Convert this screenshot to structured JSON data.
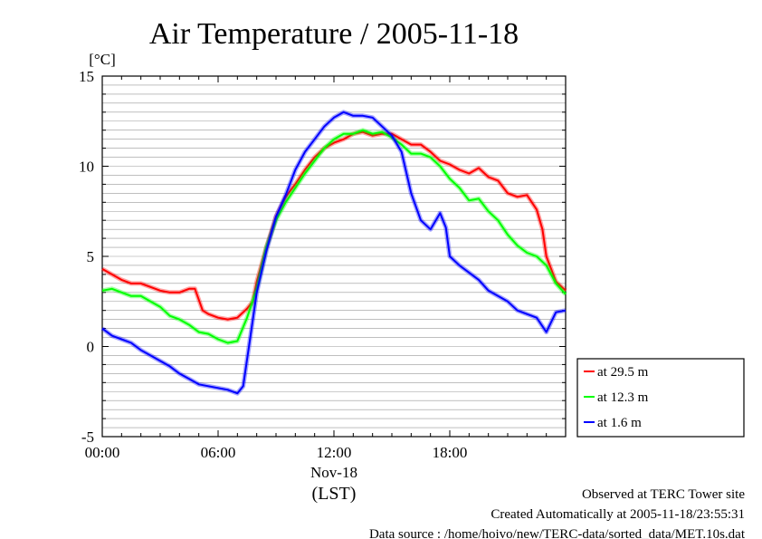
{
  "chart_data": {
    "type": "line",
    "title": "Air Temperature / 2005-11-18",
    "y_unit": "[°C]",
    "ylim": [
      -5,
      15
    ],
    "y_ticks": [
      -5,
      0,
      5,
      10,
      15
    ],
    "xlim": [
      0,
      24
    ],
    "x_ticks": [
      {
        "value": 0,
        "label": "00:00"
      },
      {
        "value": 6,
        "label": "06:00"
      },
      {
        "value": 12,
        "label": "12:00"
      },
      {
        "value": 18,
        "label": "18:00"
      }
    ],
    "x_date_label": "Nov-18",
    "x_axis_label": "(LST)",
    "grid": "horizontal, every 0.5 °C",
    "legend_position": "right",
    "series": [
      {
        "name": "at 29.5 m",
        "color": "#ff0000",
        "points": [
          [
            0,
            4.3
          ],
          [
            0.5,
            4.0
          ],
          [
            1,
            3.7
          ],
          [
            1.5,
            3.5
          ],
          [
            2,
            3.5
          ],
          [
            2.5,
            3.3
          ],
          [
            3,
            3.1
          ],
          [
            3.5,
            3.0
          ],
          [
            4,
            3.0
          ],
          [
            4.5,
            3.2
          ],
          [
            4.8,
            3.2
          ],
          [
            5.2,
            2.0
          ],
          [
            5.5,
            1.8
          ],
          [
            6,
            1.6
          ],
          [
            6.5,
            1.5
          ],
          [
            7,
            1.6
          ],
          [
            7.5,
            2.1
          ],
          [
            7.8,
            2.5
          ],
          [
            8,
            3.6
          ],
          [
            8.5,
            5.5
          ],
          [
            9,
            7.2
          ],
          [
            9.5,
            8.3
          ],
          [
            10,
            9.0
          ],
          [
            10.5,
            9.8
          ],
          [
            11,
            10.5
          ],
          [
            11.5,
            11.0
          ],
          [
            12,
            11.3
          ],
          [
            12.5,
            11.5
          ],
          [
            13,
            11.8
          ],
          [
            13.5,
            11.9
          ],
          [
            14,
            11.7
          ],
          [
            14.5,
            11.8
          ],
          [
            15,
            11.8
          ],
          [
            15.5,
            11.5
          ],
          [
            16,
            11.2
          ],
          [
            16.5,
            11.2
          ],
          [
            17,
            10.8
          ],
          [
            17.5,
            10.3
          ],
          [
            18,
            10.1
          ],
          [
            18.5,
            9.8
          ],
          [
            19,
            9.6
          ],
          [
            19.5,
            9.9
          ],
          [
            20,
            9.4
          ],
          [
            20.5,
            9.2
          ],
          [
            21,
            8.5
          ],
          [
            21.5,
            8.3
          ],
          [
            22,
            8.4
          ],
          [
            22.5,
            7.6
          ],
          [
            22.8,
            6.5
          ],
          [
            23,
            5.0
          ],
          [
            23.5,
            3.6
          ],
          [
            24,
            3.1
          ]
        ]
      },
      {
        "name": "at 12.3 m",
        "color": "#00ff00",
        "points": [
          [
            0,
            3.1
          ],
          [
            0.5,
            3.2
          ],
          [
            1,
            3.0
          ],
          [
            1.5,
            2.8
          ],
          [
            2,
            2.8
          ],
          [
            2.5,
            2.5
          ],
          [
            3,
            2.2
          ],
          [
            3.5,
            1.7
          ],
          [
            4,
            1.5
          ],
          [
            4.5,
            1.2
          ],
          [
            5,
            0.8
          ],
          [
            5.5,
            0.7
          ],
          [
            6,
            0.4
          ],
          [
            6.5,
            0.2
          ],
          [
            7,
            0.3
          ],
          [
            7.5,
            1.6
          ],
          [
            8,
            3.2
          ],
          [
            8.5,
            5.5
          ],
          [
            9,
            7.0
          ],
          [
            9.5,
            8.0
          ],
          [
            10,
            8.8
          ],
          [
            10.5,
            9.6
          ],
          [
            11,
            10.3
          ],
          [
            11.5,
            11.0
          ],
          [
            12,
            11.5
          ],
          [
            12.5,
            11.8
          ],
          [
            13,
            11.8
          ],
          [
            13.5,
            12.0
          ],
          [
            14,
            11.8
          ],
          [
            14.5,
            11.9
          ],
          [
            15,
            11.6
          ],
          [
            15.5,
            11.2
          ],
          [
            16,
            10.7
          ],
          [
            16.5,
            10.7
          ],
          [
            17,
            10.5
          ],
          [
            17.5,
            10.0
          ],
          [
            18,
            9.3
          ],
          [
            18.5,
            8.8
          ],
          [
            19,
            8.1
          ],
          [
            19.5,
            8.2
          ],
          [
            20,
            7.5
          ],
          [
            20.5,
            7.0
          ],
          [
            21,
            6.2
          ],
          [
            21.5,
            5.6
          ],
          [
            22,
            5.2
          ],
          [
            22.5,
            5.0
          ],
          [
            23,
            4.5
          ],
          [
            23.5,
            3.5
          ],
          [
            24,
            2.9
          ]
        ]
      },
      {
        "name": "at 1.6 m",
        "color": "#0000ff",
        "points": [
          [
            0,
            1.0
          ],
          [
            0.5,
            0.6
          ],
          [
            1,
            0.4
          ],
          [
            1.5,
            0.2
          ],
          [
            2,
            -0.2
          ],
          [
            2.5,
            -0.5
          ],
          [
            3,
            -0.8
          ],
          [
            3.5,
            -1.1
          ],
          [
            4,
            -1.5
          ],
          [
            4.5,
            -1.8
          ],
          [
            5,
            -2.1
          ],
          [
            5.5,
            -2.2
          ],
          [
            6,
            -2.3
          ],
          [
            6.5,
            -2.4
          ],
          [
            7,
            -2.6
          ],
          [
            7.3,
            -2.2
          ],
          [
            7.6,
            0.0
          ],
          [
            8,
            3.0
          ],
          [
            8.5,
            5.3
          ],
          [
            9,
            7.2
          ],
          [
            9.5,
            8.4
          ],
          [
            10,
            9.8
          ],
          [
            10.5,
            10.8
          ],
          [
            11,
            11.5
          ],
          [
            11.5,
            12.2
          ],
          [
            12,
            12.7
          ],
          [
            12.5,
            13.0
          ],
          [
            13,
            12.8
          ],
          [
            13.5,
            12.8
          ],
          [
            14,
            12.7
          ],
          [
            14.5,
            12.2
          ],
          [
            15,
            11.7
          ],
          [
            15.5,
            10.8
          ],
          [
            16,
            8.5
          ],
          [
            16.5,
            7.0
          ],
          [
            17,
            6.5
          ],
          [
            17.5,
            7.4
          ],
          [
            17.8,
            6.6
          ],
          [
            18,
            5.0
          ],
          [
            18.5,
            4.5
          ],
          [
            19,
            4.1
          ],
          [
            19.5,
            3.7
          ],
          [
            20,
            3.1
          ],
          [
            20.5,
            2.8
          ],
          [
            21,
            2.5
          ],
          [
            21.5,
            2.0
          ],
          [
            22,
            1.8
          ],
          [
            22.5,
            1.6
          ],
          [
            23,
            0.8
          ],
          [
            23.5,
            1.9
          ],
          [
            24,
            2.0
          ]
        ]
      }
    ]
  },
  "footer": {
    "line1": "Observed at TERC Tower site",
    "line2": "Created Automatically at 2005-11-18/23:55:31",
    "line3": "Data source : /home/hoivo/new/TERC-data/sorted_data/MET.10s.dat"
  }
}
